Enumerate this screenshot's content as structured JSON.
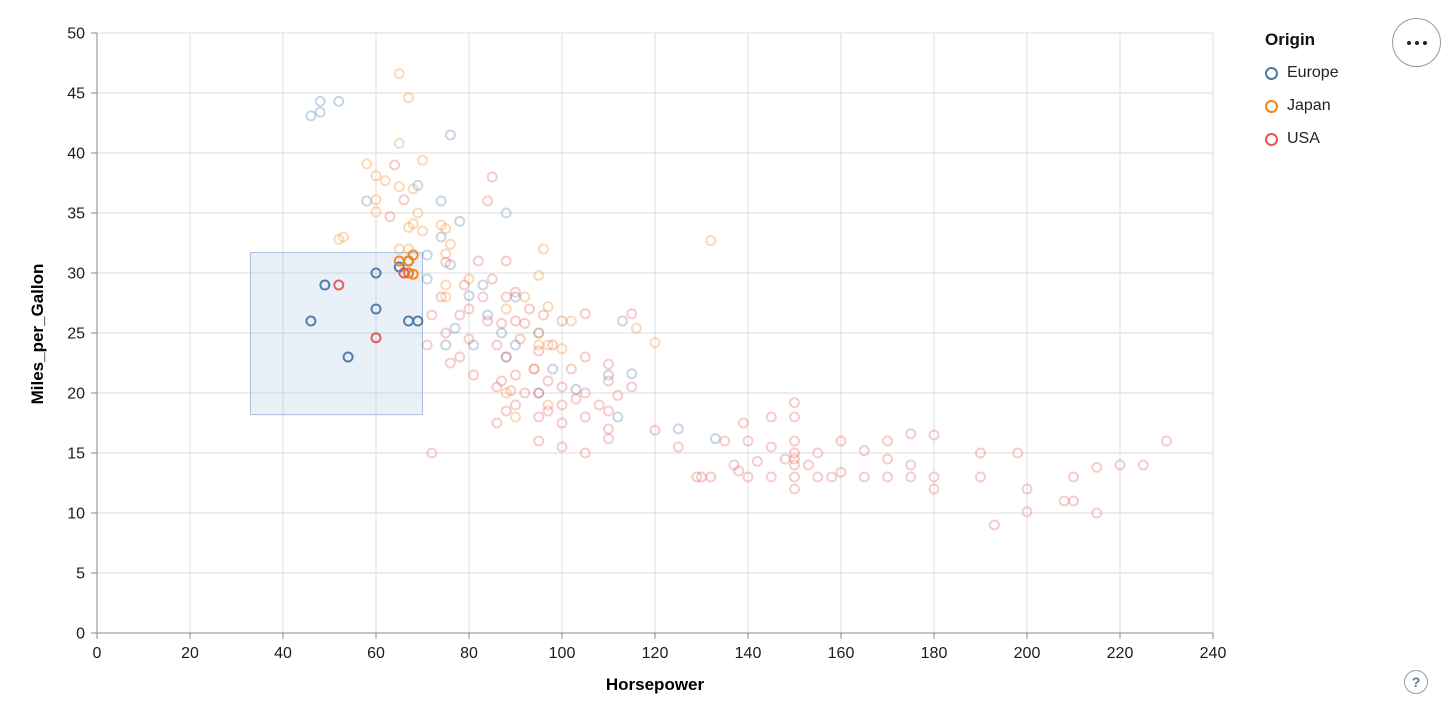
{
  "legend": {
    "title": "Origin",
    "items": [
      {
        "label": "Europe",
        "color": "#4c78a8"
      },
      {
        "label": "Japan",
        "color": "#f58518"
      },
      {
        "label": "USA",
        "color": "#e45756"
      }
    ]
  },
  "controls": {
    "help_label": "?"
  },
  "chart_data": {
    "type": "scatter",
    "title": "",
    "xlabel": "Horsepower",
    "ylabel": "Miles_per_Gallon",
    "xlim": [
      0,
      240
    ],
    "ylim": [
      0,
      50
    ],
    "x_ticks": [
      0,
      20,
      40,
      60,
      80,
      100,
      120,
      140,
      160,
      180,
      200,
      220,
      240
    ],
    "y_ticks": [
      0,
      5,
      10,
      15,
      20,
      25,
      30,
      35,
      40,
      45,
      50
    ],
    "grid": true,
    "legend_position": "top-right",
    "brush": {
      "x": [
        33,
        70
      ],
      "y": [
        18.2,
        31.7
      ]
    },
    "point_style": {
      "shape": "open-circle",
      "radius": 4.5,
      "stroke_width": 2,
      "selected_opacity": 0.95,
      "unselected_opacity": 0.3
    },
    "series": [
      {
        "name": "Europe",
        "color": "#4c78a8",
        "points": [
          [
            46,
            26
          ],
          [
            49,
            29
          ],
          [
            54,
            23
          ],
          [
            60,
            27
          ],
          [
            60,
            30
          ],
          [
            65,
            30.5
          ],
          [
            67,
            31
          ],
          [
            67,
            30
          ],
          [
            67,
            26
          ],
          [
            69,
            26
          ],
          [
            46,
            43.1
          ],
          [
            48,
            43.4
          ],
          [
            48,
            44.3
          ],
          [
            52,
            44.3
          ],
          [
            58,
            36
          ],
          [
            69,
            37.3
          ],
          [
            71,
            29.5
          ],
          [
            71,
            31.5
          ],
          [
            74,
            33
          ],
          [
            74,
            36
          ],
          [
            75,
            24
          ],
          [
            76,
            30.7
          ],
          [
            76,
            41.5
          ],
          [
            77,
            25.4
          ],
          [
            78,
            34.3
          ],
          [
            80,
            28.1
          ],
          [
            81,
            24
          ],
          [
            83,
            29
          ],
          [
            84,
            26.5
          ],
          [
            87,
            25
          ],
          [
            88,
            23
          ],
          [
            88,
            35
          ],
          [
            90,
            24
          ],
          [
            90,
            28
          ],
          [
            95,
            25
          ],
          [
            95,
            20
          ],
          [
            98,
            22
          ],
          [
            103,
            20.3
          ],
          [
            110,
            21.5
          ],
          [
            112,
            18
          ],
          [
            113,
            26
          ],
          [
            115,
            21.6
          ],
          [
            125,
            17
          ],
          [
            133,
            16.2
          ]
        ]
      },
      {
        "name": "Japan",
        "color": "#f58518",
        "points": [
          [
            65,
            31
          ],
          [
            67,
            31
          ],
          [
            68,
            31.5
          ],
          [
            67,
            30
          ],
          [
            68,
            29.9
          ],
          [
            52,
            32.8
          ],
          [
            53,
            33
          ],
          [
            58,
            39.1
          ],
          [
            60,
            35.1
          ],
          [
            60,
            36.1
          ],
          [
            60,
            38.1
          ],
          [
            62,
            37.7
          ],
          [
            65,
            32
          ],
          [
            65,
            37.2
          ],
          [
            65,
            40.8
          ],
          [
            65,
            46.6
          ],
          [
            67,
            44.6
          ],
          [
            67,
            33.8
          ],
          [
            67,
            32
          ],
          [
            68,
            34.1
          ],
          [
            68,
            37
          ],
          [
            69,
            35
          ],
          [
            70,
            33.5
          ],
          [
            70,
            39.4
          ],
          [
            74,
            34
          ],
          [
            75,
            28
          ],
          [
            75,
            29
          ],
          [
            75,
            31.6
          ],
          [
            75,
            33.7
          ],
          [
            76,
            32.4
          ],
          [
            80,
            29.5
          ],
          [
            88,
            20
          ],
          [
            88,
            27
          ],
          [
            90,
            18
          ],
          [
            92,
            28
          ],
          [
            94,
            22
          ],
          [
            95,
            24
          ],
          [
            95,
            25
          ],
          [
            95,
            29.8
          ],
          [
            96,
            32
          ],
          [
            97,
            19
          ],
          [
            97,
            24
          ],
          [
            97,
            27.2
          ],
          [
            100,
            23.7
          ],
          [
            102,
            26
          ],
          [
            116,
            25.4
          ],
          [
            120,
            24.2
          ],
          [
            132,
            32.7
          ]
        ]
      },
      {
        "name": "USA",
        "color": "#e45756",
        "points": [
          [
            52,
            29
          ],
          [
            60,
            24.6
          ],
          [
            66,
            30
          ],
          [
            63,
            34.7
          ],
          [
            64,
            39
          ],
          [
            66,
            36.1
          ],
          [
            71,
            24
          ],
          [
            72,
            15
          ],
          [
            72,
            26.5
          ],
          [
            74,
            28
          ],
          [
            75,
            25
          ],
          [
            75,
            30.9
          ],
          [
            76,
            22.5
          ],
          [
            78,
            23
          ],
          [
            78,
            26.5
          ],
          [
            79,
            29
          ],
          [
            80,
            24.5
          ],
          [
            80,
            27
          ],
          [
            81,
            21.5
          ],
          [
            82,
            31
          ],
          [
            83,
            28
          ],
          [
            84,
            26
          ],
          [
            84,
            36
          ],
          [
            85,
            38
          ],
          [
            85,
            29.5
          ],
          [
            86,
            17.5
          ],
          [
            86,
            20.5
          ],
          [
            86,
            24
          ],
          [
            87,
            21
          ],
          [
            87,
            25.8
          ],
          [
            88,
            18.5
          ],
          [
            88,
            23
          ],
          [
            88,
            28
          ],
          [
            88,
            31
          ],
          [
            89,
            20.2
          ],
          [
            90,
            19
          ],
          [
            90,
            21.5
          ],
          [
            90,
            26
          ],
          [
            90,
            28.4
          ],
          [
            91,
            24.5
          ],
          [
            92,
            20
          ],
          [
            92,
            25.8
          ],
          [
            93,
            27
          ],
          [
            94,
            22
          ],
          [
            95,
            16
          ],
          [
            95,
            18
          ],
          [
            95,
            20
          ],
          [
            95,
            23.5
          ],
          [
            96,
            26.5
          ],
          [
            97,
            18.5
          ],
          [
            97,
            21
          ],
          [
            98,
            24
          ],
          [
            100,
            15.5
          ],
          [
            100,
            17.5
          ],
          [
            100,
            19
          ],
          [
            100,
            20.5
          ],
          [
            100,
            26
          ],
          [
            102,
            22
          ],
          [
            103,
            19.5
          ],
          [
            105,
            15
          ],
          [
            105,
            18
          ],
          [
            105,
            20
          ],
          [
            105,
            23
          ],
          [
            105,
            26.6
          ],
          [
            108,
            19
          ],
          [
            110,
            16.2
          ],
          [
            110,
            17
          ],
          [
            110,
            18.5
          ],
          [
            110,
            21
          ],
          [
            110,
            22.4
          ],
          [
            112,
            19.8
          ],
          [
            115,
            20.5
          ],
          [
            115,
            26.6
          ],
          [
            120,
            16.9
          ],
          [
            125,
            15.5
          ],
          [
            129,
            13
          ],
          [
            130,
            13
          ],
          [
            132,
            13
          ],
          [
            135,
            16
          ],
          [
            137,
            14
          ],
          [
            138,
            13.5
          ],
          [
            139,
            17.5
          ],
          [
            140,
            13
          ],
          [
            140,
            16
          ],
          [
            142,
            14.3
          ],
          [
            145,
            13
          ],
          [
            145,
            15.5
          ],
          [
            145,
            18
          ],
          [
            148,
            14.5
          ],
          [
            150,
            12
          ],
          [
            150,
            13
          ],
          [
            150,
            14
          ],
          [
            150,
            14.5
          ],
          [
            150,
            15
          ],
          [
            150,
            16
          ],
          [
            150,
            18
          ],
          [
            150,
            19.2
          ],
          [
            153,
            14
          ],
          [
            155,
            13
          ],
          [
            155,
            15
          ],
          [
            158,
            13
          ],
          [
            160,
            13.4
          ],
          [
            160,
            16
          ],
          [
            165,
            13
          ],
          [
            165,
            15.2
          ],
          [
            170,
            13
          ],
          [
            170,
            14.5
          ],
          [
            170,
            16
          ],
          [
            175,
            13
          ],
          [
            175,
            14
          ],
          [
            175,
            16.6
          ],
          [
            180,
            12
          ],
          [
            180,
            13
          ],
          [
            180,
            16.5
          ],
          [
            190,
            13
          ],
          [
            190,
            15
          ],
          [
            193,
            9
          ],
          [
            198,
            15
          ],
          [
            200,
            10.1
          ],
          [
            200,
            12
          ],
          [
            208,
            11
          ],
          [
            210,
            11
          ],
          [
            210,
            13
          ],
          [
            215,
            10
          ],
          [
            215,
            13.8
          ],
          [
            220,
            14
          ],
          [
            225,
            14
          ],
          [
            230,
            16
          ]
        ]
      }
    ]
  }
}
